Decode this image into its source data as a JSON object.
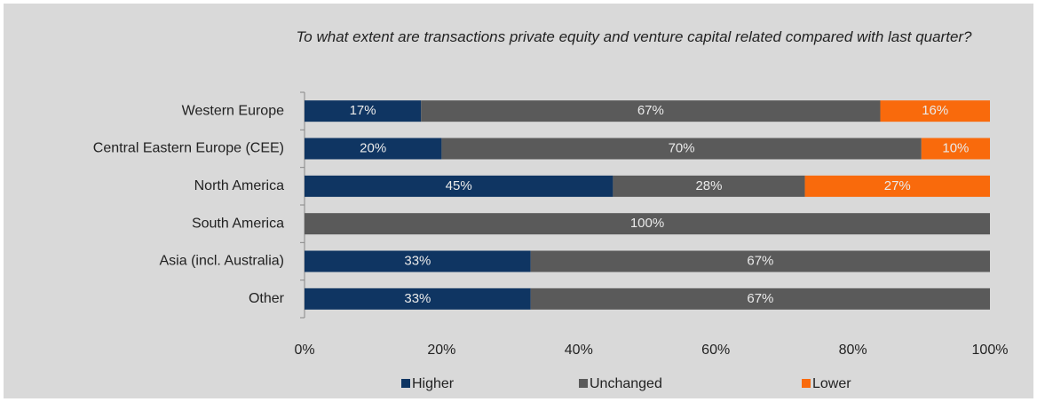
{
  "chart_data": {
    "type": "stacked_bar_horizontal",
    "title": "To what extent are transactions private equity and venture capital related compared with last quarter?",
    "categories": [
      "Western Europe",
      "Central Eastern Europe (CEE)",
      "North America",
      "South America",
      "Asia (incl. Australia)",
      "Other"
    ],
    "series": [
      {
        "name": "Higher",
        "color": "#0f3562",
        "values": [
          17,
          20,
          45,
          0,
          33,
          33
        ],
        "value_labels": [
          "17%",
          "20%",
          "45%",
          null,
          "33%",
          "33%"
        ]
      },
      {
        "name": "Unchanged",
        "color": "#5a5a5a",
        "values": [
          67,
          70,
          28,
          100,
          67,
          67
        ],
        "value_labels": [
          "67%",
          "70%",
          "28%",
          "100%",
          "67%",
          "67%"
        ]
      },
      {
        "name": "Lower",
        "color": "#f96a0c",
        "values": [
          16,
          10,
          27,
          0,
          0,
          0
        ],
        "value_labels": [
          "16%",
          "10%",
          "27%",
          null,
          null,
          null
        ]
      }
    ],
    "xlim": [
      0,
      100
    ],
    "xticks": [
      {
        "value": 0,
        "label": "0%"
      },
      {
        "value": 20,
        "label": "20%"
      },
      {
        "value": 40,
        "label": "40%"
      },
      {
        "value": 60,
        "label": "60%"
      },
      {
        "value": 80,
        "label": "80%"
      },
      {
        "value": 100,
        "label": "100%"
      }
    ],
    "legend": "bottom"
  }
}
